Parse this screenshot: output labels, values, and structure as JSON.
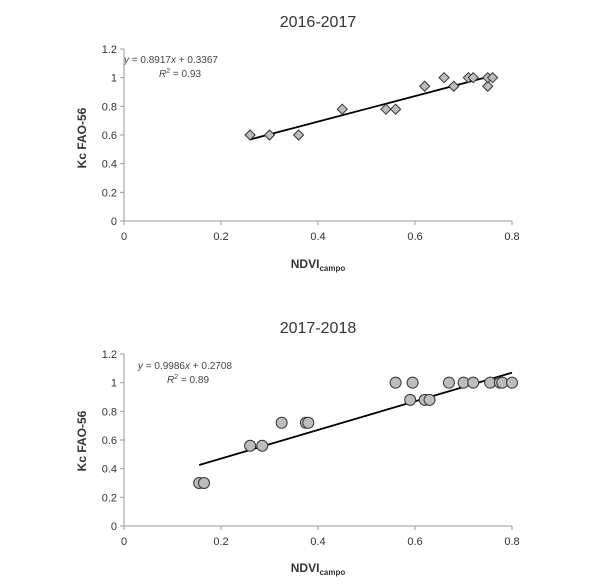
{
  "chart_data": [
    {
      "type": "scatter",
      "title": "2016-2017",
      "xlabel_main": "NDVI",
      "xlabel_sub": "campo",
      "ylabel": "Kc FAO-56",
      "xlim": [
        0,
        0.8
      ],
      "ylim": [
        0,
        1.2
      ],
      "x_ticks": [
        "0",
        "0.2",
        "0.4",
        "0.6",
        "0.8"
      ],
      "y_ticks": [
        "0",
        "0.2",
        "0.4",
        "0.6",
        "0.8",
        "1",
        "1.2"
      ],
      "marker": "diamond",
      "equation_prefix": "y",
      "equation_body": " = 0.8917",
      "equation_var": "x",
      "equation_tail": " + 0.3367",
      "r2_prefix": "R",
      "r2_sup": "2",
      "r2_value": " = 0.93",
      "trendline": {
        "slope": 0.8917,
        "intercept": 0.3367,
        "x_range": [
          0.26,
          0.76
        ]
      },
      "points": [
        [
          0.26,
          0.6
        ],
        [
          0.3,
          0.6
        ],
        [
          0.36,
          0.6
        ],
        [
          0.45,
          0.78
        ],
        [
          0.54,
          0.78
        ],
        [
          0.56,
          0.78
        ],
        [
          0.62,
          0.94
        ],
        [
          0.66,
          1.0
        ],
        [
          0.68,
          0.94
        ],
        [
          0.71,
          1.0
        ],
        [
          0.72,
          1.0
        ],
        [
          0.75,
          0.94
        ],
        [
          0.75,
          1.0
        ],
        [
          0.76,
          1.0
        ]
      ]
    },
    {
      "type": "scatter",
      "title": "2017-2018",
      "xlabel_main": "NDVI",
      "xlabel_sub": "campo",
      "ylabel": "Kc FAO-56",
      "xlim": [
        0,
        0.8
      ],
      "ylim": [
        0,
        1.2
      ],
      "x_ticks": [
        "0",
        "0.2",
        "0.4",
        "0.6",
        "0.8"
      ],
      "y_ticks": [
        "0",
        "0.2",
        "0.4",
        "0.6",
        "0.8",
        "1",
        "1.2"
      ],
      "marker": "circle",
      "equation_prefix": "y",
      "equation_body": " = 0.9986",
      "equation_var": "x",
      "equation_tail": " + 0.2708",
      "r2_prefix": "R",
      "r2_sup": "2",
      "r2_value": " = 0.89",
      "trendline": {
        "slope": 0.9986,
        "intercept": 0.2708,
        "x_range": [
          0.155,
          0.8
        ]
      },
      "points": [
        [
          0.155,
          0.3
        ],
        [
          0.165,
          0.3
        ],
        [
          0.26,
          0.56
        ],
        [
          0.285,
          0.56
        ],
        [
          0.325,
          0.72
        ],
        [
          0.375,
          0.72
        ],
        [
          0.38,
          0.72
        ],
        [
          0.56,
          1.0
        ],
        [
          0.59,
          0.88
        ],
        [
          0.595,
          1.0
        ],
        [
          0.62,
          0.88
        ],
        [
          0.63,
          0.88
        ],
        [
          0.67,
          1.0
        ],
        [
          0.7,
          1.0
        ],
        [
          0.72,
          1.0
        ],
        [
          0.755,
          1.0
        ],
        [
          0.775,
          1.0
        ],
        [
          0.78,
          1.0
        ],
        [
          0.8,
          1.0
        ]
      ]
    }
  ]
}
